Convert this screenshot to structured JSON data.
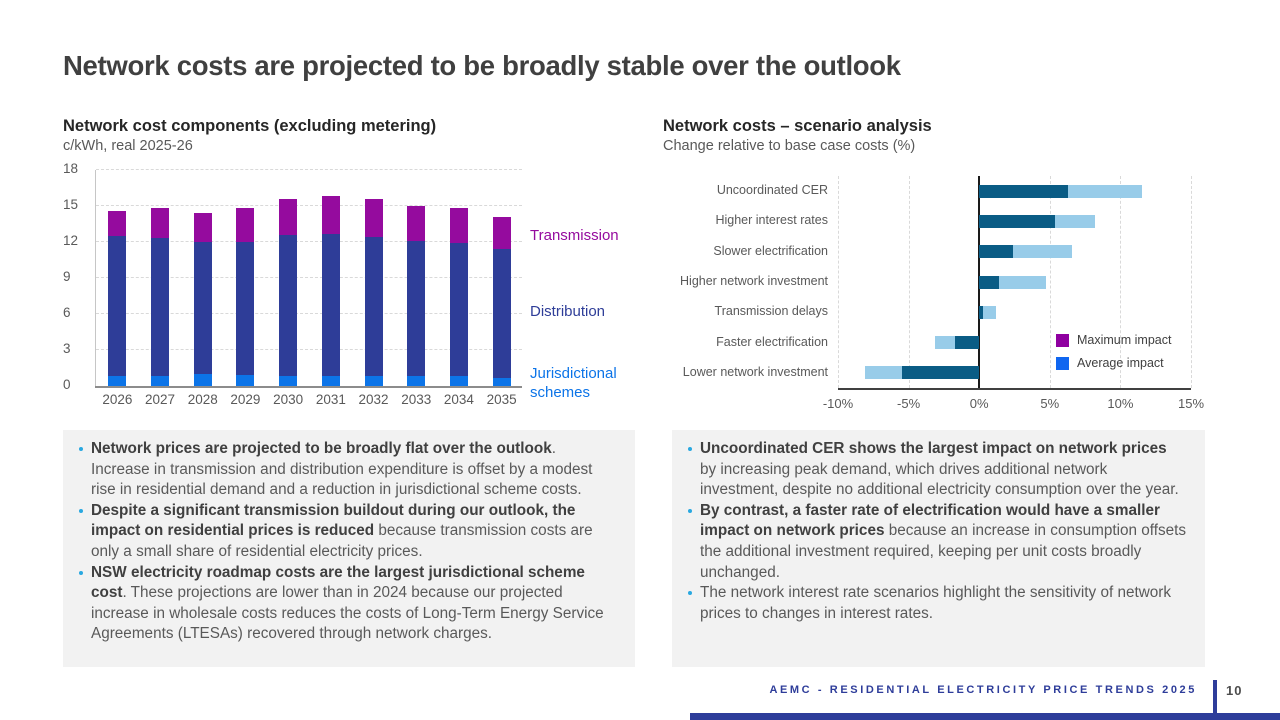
{
  "title": "Network costs are projected to be broadly stable over the outlook",
  "chart_data": [
    {
      "type": "bar",
      "stacked": true,
      "title": "Network cost components (excluding metering)",
      "subtitle": "c/kWh, real 2025-26",
      "categories": [
        "2026",
        "2027",
        "2028",
        "2029",
        "2030",
        "2031",
        "2032",
        "2033",
        "2034",
        "2035"
      ],
      "series": [
        {
          "name": "Jurisdictional schemes",
          "color": "#0C74E8",
          "values": [
            0.8,
            0.8,
            1.0,
            0.9,
            0.8,
            0.8,
            0.8,
            0.8,
            0.8,
            0.7
          ]
        },
        {
          "name": "Distribution",
          "color": "#2E3D98",
          "values": [
            11.7,
            11.5,
            11.0,
            11.1,
            11.8,
            11.9,
            11.6,
            11.3,
            11.1,
            10.7
          ]
        },
        {
          "name": "Transmission",
          "color": "#950B9E",
          "values": [
            2.1,
            2.5,
            2.4,
            2.8,
            3.0,
            3.1,
            3.2,
            2.9,
            2.9,
            2.7
          ]
        }
      ],
      "ylim": [
        0,
        18
      ],
      "yticks": [
        0,
        3,
        6,
        9,
        12,
        15,
        18
      ],
      "grid": "dashed-horizontal",
      "legend_position": "right-outside"
    },
    {
      "type": "bar-horizontal",
      "stacked": true,
      "title": "Network costs – scenario analysis",
      "subtitle": "Change relative to base case costs (%)",
      "categories": [
        "Uncoordinated CER",
        "Higher interest rates",
        "Slower electrification",
        "Higher network investment",
        "Transmission delays",
        "Faster electrification",
        "Lower network investment"
      ],
      "series": [
        {
          "name": "Average impact",
          "values": [
            6.3,
            5.4,
            2.4,
            1.4,
            0.3,
            -1.7,
            -5.5
          ]
        },
        {
          "name": "Maximum impact",
          "values": [
            11.5,
            8.2,
            6.6,
            4.7,
            1.2,
            -3.1,
            -8.1
          ]
        }
      ],
      "xlim": [
        -10,
        15
      ],
      "xticks": [
        "-10%",
        "-5%",
        "0%",
        "5%",
        "10%",
        "15%"
      ],
      "xtick_values": [
        -10,
        -5,
        0,
        5,
        10,
        15
      ],
      "grid": "dashed-vertical",
      "bar_colors": {
        "average": "#0A5C85",
        "maximum": "#98CCE9"
      },
      "legend": [
        {
          "label": "Maximum impact",
          "color": "#8F00A0"
        },
        {
          "label": "Average impact",
          "color": "#1066F0"
        }
      ],
      "legend_position": "inside-bottom-right"
    }
  ],
  "notes": {
    "left": {
      "bullets": [
        {
          "bold": "Network prices are projected to be broadly flat over the outlook",
          "rest": ". Increase in transmission and distribution expenditure is offset by a modest rise in residential demand and a reduction in jurisdictional scheme costs."
        },
        {
          "bold": "Despite a significant transmission buildout during our outlook, the impact on residential prices is reduced",
          "rest": " because transmission costs are only a small share of residential electricity prices."
        },
        {
          "bold": "NSW electricity roadmap costs are the largest jurisdictional scheme cost",
          "rest": ". These projections are lower than in 2024 because our projected increase in wholesale costs reduces the costs of Long-Term Energy Service Agreements (LTESAs) recovered through network charges."
        }
      ]
    },
    "right": {
      "bullets": [
        {
          "bold": "Uncoordinated CER shows the largest impact on network prices",
          "rest": " by increasing peak demand, which drives additional network investment, despite no additional electricity consumption over the year."
        },
        {
          "bold": "By contrast, a faster rate of electrification would have a smaller impact on network prices",
          "rest": " because an increase in consumption offsets the additional investment required, keeping per unit costs broadly unchanged."
        },
        {
          "bold": "",
          "rest": "The network interest rate scenarios highlight the sensitivity of network prices to changes in interest rates."
        }
      ]
    }
  },
  "footer": {
    "text": "AEMC - RESIDENTIAL ELECTRICITY PRICE TRENDS 2025",
    "page": "10"
  },
  "theme": {
    "bullet_color": "#29A8E0",
    "notes_background": "#F2F2F2",
    "footer_accent": "#2E3D9A",
    "title_color": "#404040",
    "body_text_color": "#595959"
  }
}
